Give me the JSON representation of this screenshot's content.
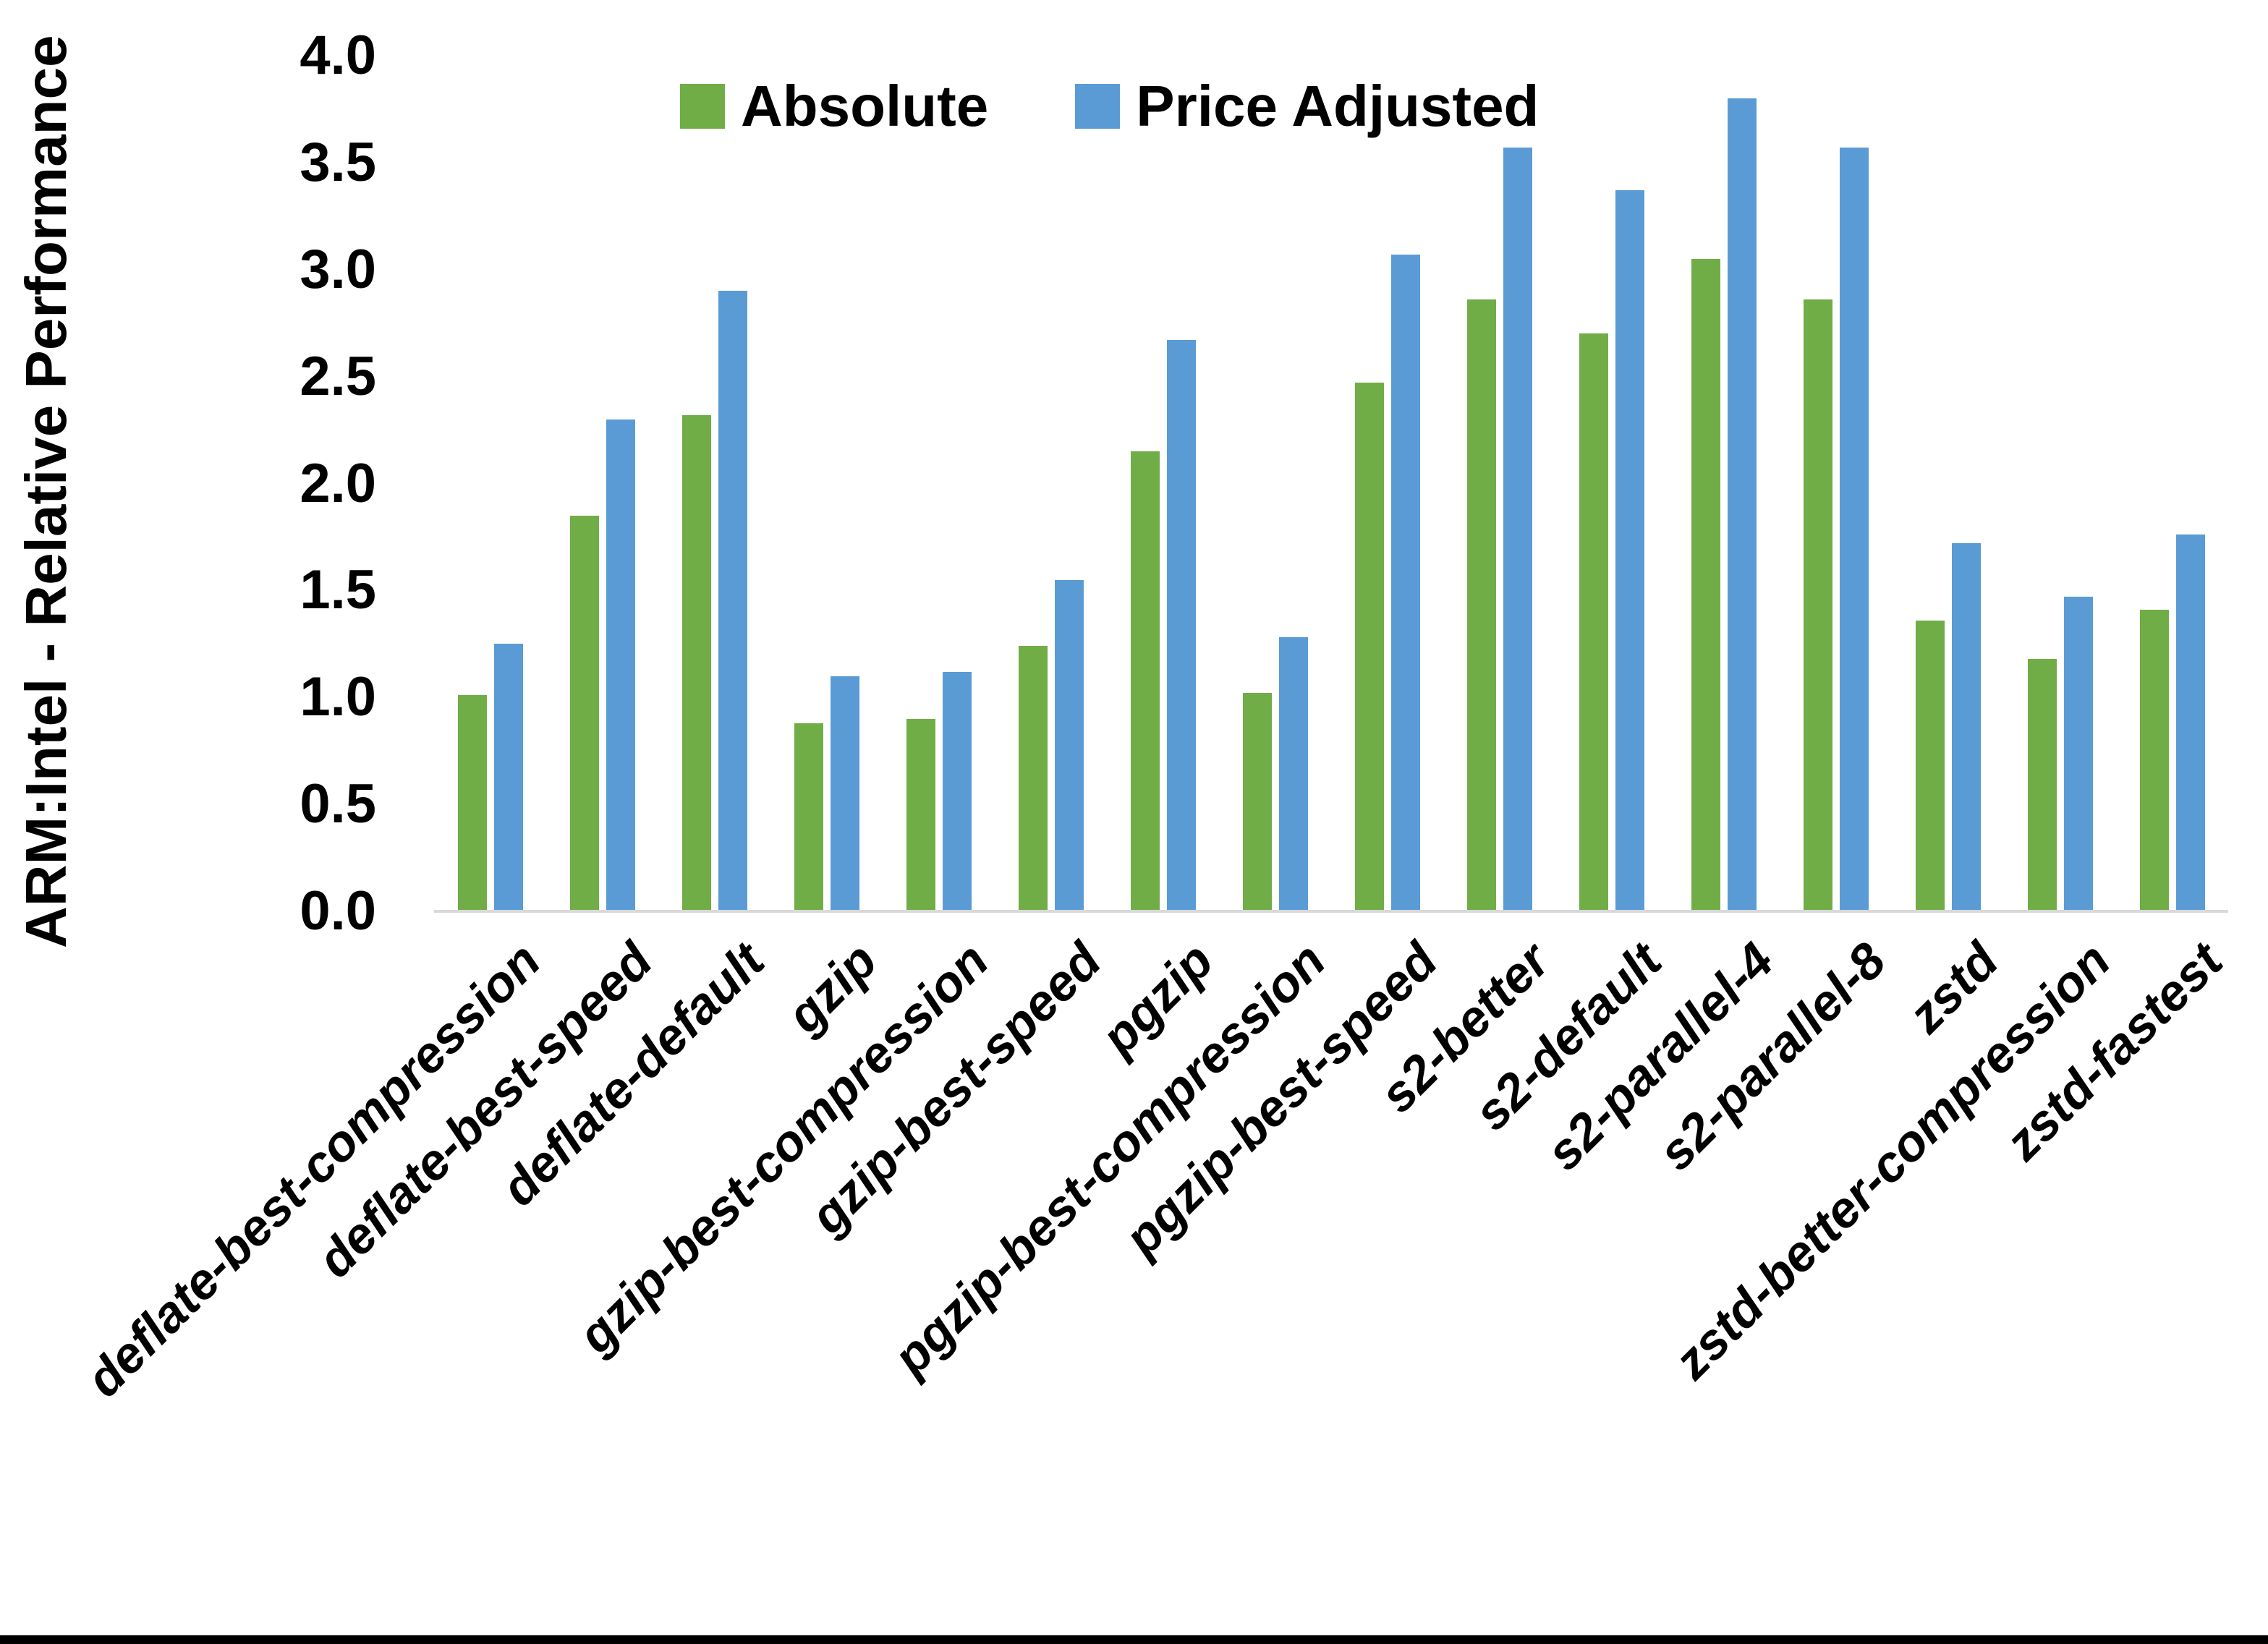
{
  "figure": {
    "background": "#FFFFFF",
    "bottom_border_color": "#000000"
  },
  "colors": {
    "axis_line": "#D9D9D9",
    "text": "#000000",
    "series_absolute": "#70AD47",
    "series_price_adjusted": "#5B9BD5"
  },
  "chart_data": {
    "type": "bar",
    "title": "",
    "xlabel": "",
    "ylabel": "ARM:Intel - Relative Performance",
    "ylim": [
      0.0,
      4.0
    ],
    "ytick_step": 0.5,
    "y_tick_labels": [
      "0.0",
      "0.5",
      "1.0",
      "1.5",
      "2.0",
      "2.5",
      "3.0",
      "3.5",
      "4.0"
    ],
    "grid": false,
    "legend_position": "top-center",
    "x_label_rotation_deg": 45,
    "categories": [
      "deflate-best-compression",
      "deflate-best-speed",
      "deflate-default",
      "gzip",
      "gzip-best-compression",
      "gzip-best-speed",
      "pgzip",
      "pgzip-best-compression",
      "pgzip-best-speed",
      "s2-better",
      "s2-default",
      "s2-parallel-4",
      "s2-parallel-8",
      "zstd",
      "zstd-better-compression",
      "zstd-fastest"
    ],
    "series": [
      {
        "name": "Absolute",
        "color": "#70AD47",
        "values": [
          1.01,
          1.85,
          2.32,
          0.88,
          0.9,
          1.24,
          2.15,
          1.02,
          2.47,
          2.86,
          2.7,
          3.05,
          2.86,
          1.36,
          1.18,
          1.41
        ]
      },
      {
        "name": "Price Adjusted",
        "color": "#5B9BD5",
        "values": [
          1.25,
          2.3,
          2.9,
          1.1,
          1.12,
          1.55,
          2.67,
          1.28,
          3.07,
          3.57,
          3.37,
          3.8,
          3.57,
          1.72,
          1.47,
          1.76
        ]
      }
    ]
  }
}
